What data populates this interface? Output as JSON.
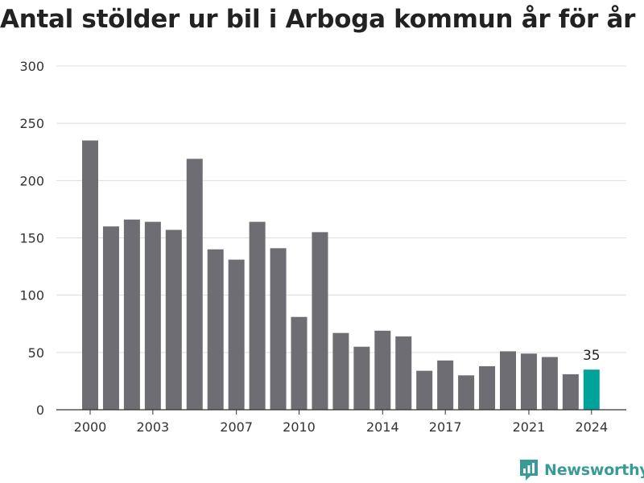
{
  "title": "Antal stölder ur bil i Arboga kommun år för år",
  "brand": {
    "name": "Newsworthy"
  },
  "colors": {
    "bar": "#6e6d73",
    "highlight": "#00a39a",
    "grid": "#dddddd",
    "axis": "#333333",
    "text": "#333333",
    "brand": "#3a9a95"
  },
  "chart_data": {
    "type": "bar",
    "title": "Antal stölder ur bil i Arboga kommun år för år",
    "xlabel": "",
    "ylabel": "",
    "categories": [
      "2000",
      "2001",
      "2002",
      "2003",
      "2004",
      "2005",
      "2006",
      "2007",
      "2008",
      "2009",
      "2010",
      "2011",
      "2012",
      "2013",
      "2014",
      "2015",
      "2016",
      "2017",
      "2018",
      "2019",
      "2020",
      "2021",
      "2022",
      "2023",
      "2024"
    ],
    "values": [
      235,
      160,
      166,
      164,
      157,
      219,
      140,
      131,
      164,
      141,
      81,
      155,
      67,
      55,
      69,
      64,
      34,
      43,
      30,
      38,
      51,
      49,
      46,
      31,
      35
    ],
    "x_tick_labels": [
      "2000",
      "2003",
      "2007",
      "2010",
      "2014",
      "2017",
      "2021",
      "2024"
    ],
    "y_ticks": [
      0,
      50,
      100,
      150,
      200,
      250,
      300
    ],
    "ylim": [
      0,
      300
    ],
    "grid": true,
    "highlight": {
      "category": "2024",
      "label": "35"
    }
  }
}
